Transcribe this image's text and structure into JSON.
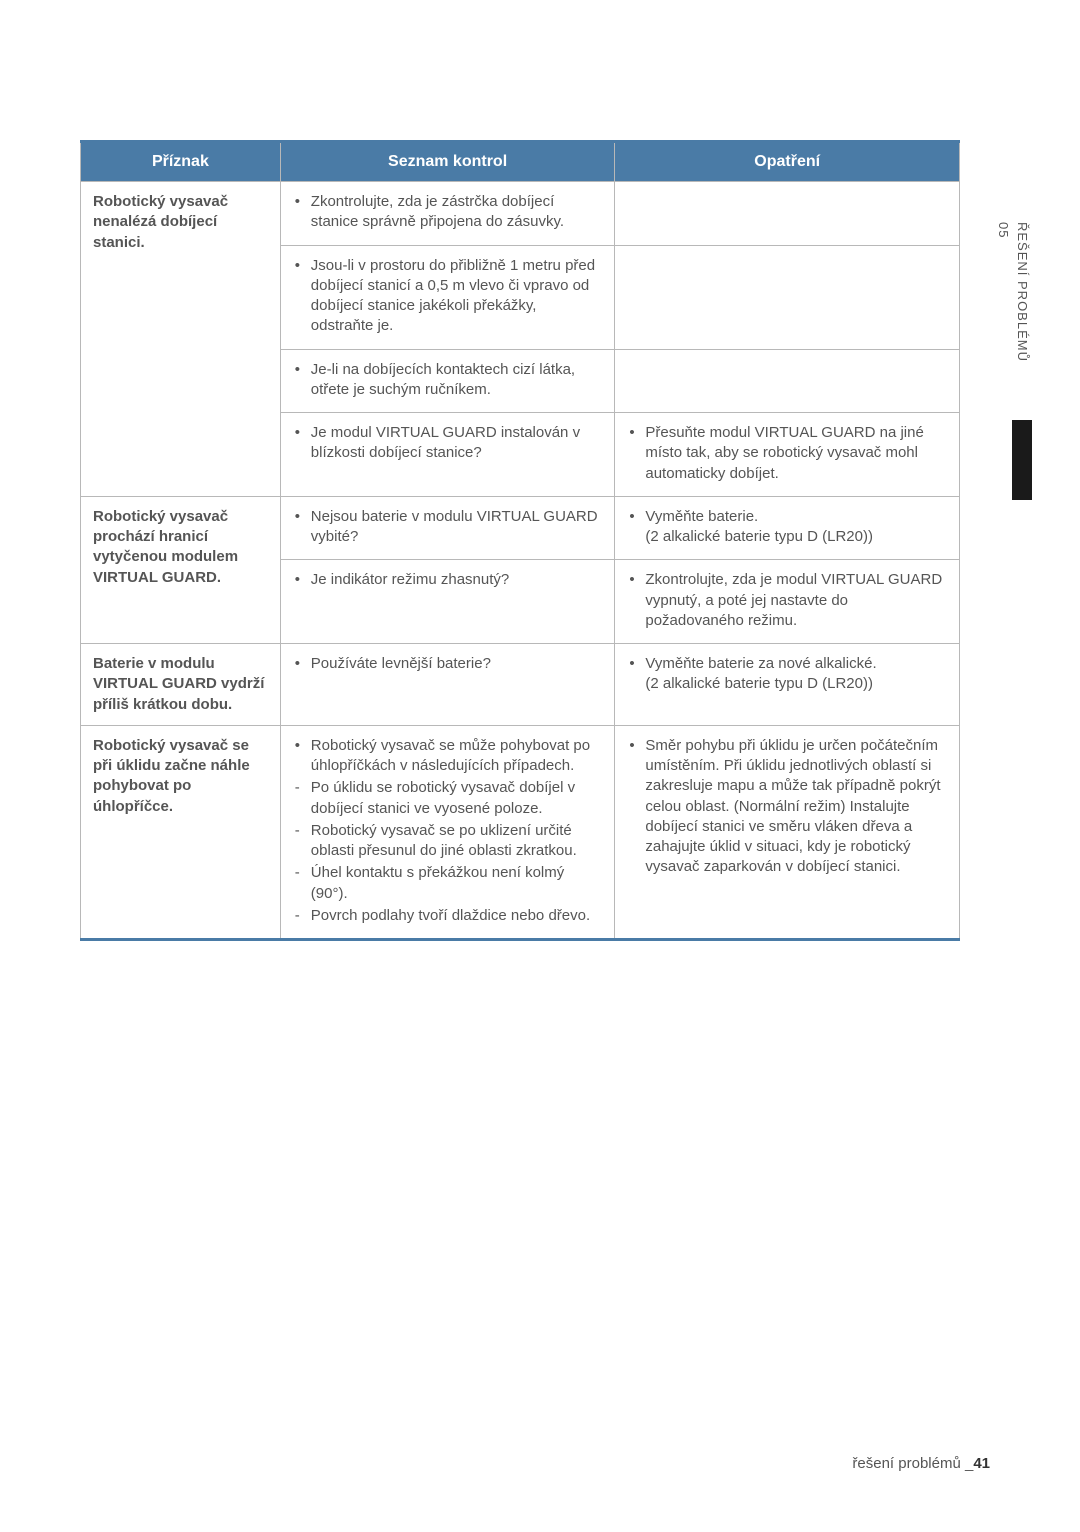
{
  "table": {
    "headers": {
      "symptom": "Příznak",
      "checklist": "Seznam kontrol",
      "action": "Opatření"
    },
    "rows": {
      "r1": {
        "symptom": "Robotický vysavač nenalézá dobíjecí stanici.",
        "checks": {
          "c1": "Zkontrolujte, zda je zástrčka dobíjecí stanice správně připojena do zásuvky.",
          "c2": "Jsou-li v prostoru do přibližně 1 metru před dobíjecí stanicí a 0,5 m vlevo či vpravo od dobíjecí stanice jakékoli překážky, odstraňte je.",
          "c3": "Je-li na dobíjecích kontaktech cizí látka, otřete je suchým ručníkem.",
          "c4": "Je modul VIRTUAL GUARD instalován v blízkosti dobíjecí stanice?"
        },
        "actions": {
          "a4": "Přesuňte modul VIRTUAL GUARD na jiné místo tak, aby se robotický vysavač mohl automaticky dobíjet."
        }
      },
      "r2": {
        "symptom": "Robotický vysavač prochází hranicí vytyčenou modulem VIRTUAL GUARD.",
        "checks": {
          "c1": "Nejsou baterie v modulu VIRTUAL GUARD vybité?",
          "c2": "Je indikátor režimu zhasnutý?"
        },
        "actions": {
          "a1_l1": "Vyměňte baterie.",
          "a1_l2": "(2 alkalické baterie typu D (LR20))",
          "a2": "Zkontrolujte, zda je modul VIRTUAL GUARD vypnutý, a poté jej nastavte do požadovaného režimu."
        }
      },
      "r3": {
        "symptom": "Baterie v modulu VIRTUAL GUARD vydrží příliš krátkou dobu.",
        "checks": {
          "c1": "Používáte levnější baterie?"
        },
        "actions": {
          "a1_l1": "Vyměňte baterie za nové alkalické.",
          "a1_l2": "(2 alkalické baterie typu D (LR20))"
        }
      },
      "r4": {
        "symptom": "Robotický vysavač se při úklidu začne náhle pohybovat po úhlopříčce.",
        "checks": {
          "c1": "Robotický vysavač se může pohybovat po úhlopříčkách v následujících případech.",
          "d1": "Po úklidu se robotický vysavač dobíjel v dobíjecí stanici ve vyosené poloze.",
          "d2": "Robotický vysavač se po uklizení určité oblasti přesunul do jiné oblasti zkratkou.",
          "d3": "Úhel kontaktu s překážkou není kolmý (90°).",
          "d4": "Povrch podlahy tvoří dlaždice nebo dřevo."
        },
        "actions": {
          "a1": "Směr pohybu při úklidu je určen počátečním umístěním. Při úklidu jednotlivých oblastí si zakresluje mapu a může tak případně pokrýt celou oblast. (Normální režim) Instalujte dobíjecí stanici ve směru vláken dřeva a zahajujte úklid v situaci, kdy je robotický vysavač zaparkován v dobíjecí stanici."
        }
      }
    }
  },
  "sidetab": {
    "num": "05",
    "label": "ŘEŠENÍ PROBLÉMŮ"
  },
  "footer": {
    "section": "řešení problémů _",
    "page": "41"
  }
}
